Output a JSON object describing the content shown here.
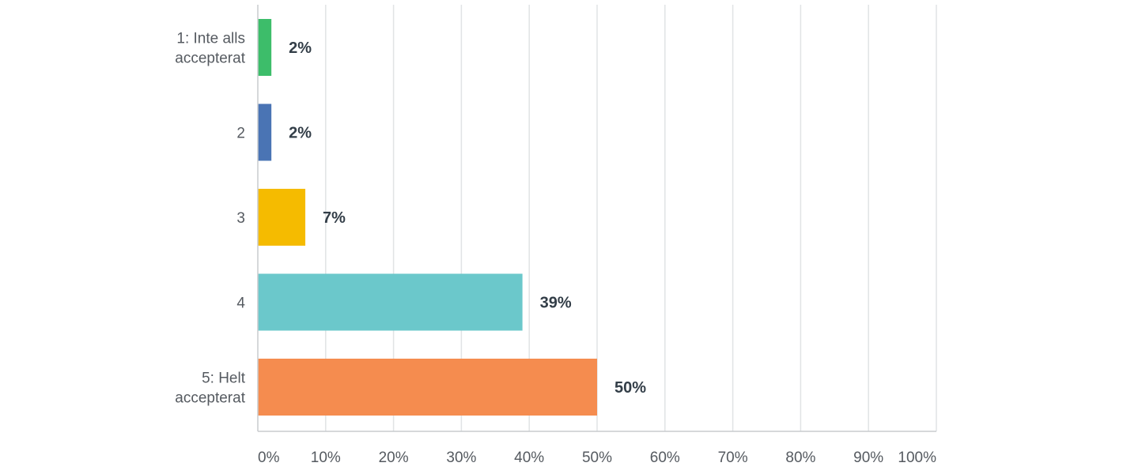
{
  "chart_data": {
    "type": "bar",
    "orientation": "horizontal",
    "categories": [
      [
        "1: Inte alls",
        "accepterat"
      ],
      [
        "2"
      ],
      [
        "3"
      ],
      [
        "4"
      ],
      [
        "5: Helt",
        "accepterat"
      ]
    ],
    "values": [
      2,
      2,
      7,
      39,
      50
    ],
    "value_labels": [
      "2%",
      "2%",
      "7%",
      "39%",
      "50%"
    ],
    "colors": [
      "#3dbd6a",
      "#4a74b4",
      "#f5bb00",
      "#6bc8cb",
      "#f58c4f"
    ],
    "xlim": [
      0,
      100
    ],
    "x_ticks": [
      0,
      10,
      20,
      30,
      40,
      50,
      60,
      70,
      80,
      90,
      100
    ],
    "x_tick_labels": [
      "0%",
      "10%",
      "20%",
      "30%",
      "40%",
      "50%",
      "60%",
      "70%",
      "80%",
      "90%",
      "100%"
    ],
    "grid": true,
    "legend": "none"
  }
}
